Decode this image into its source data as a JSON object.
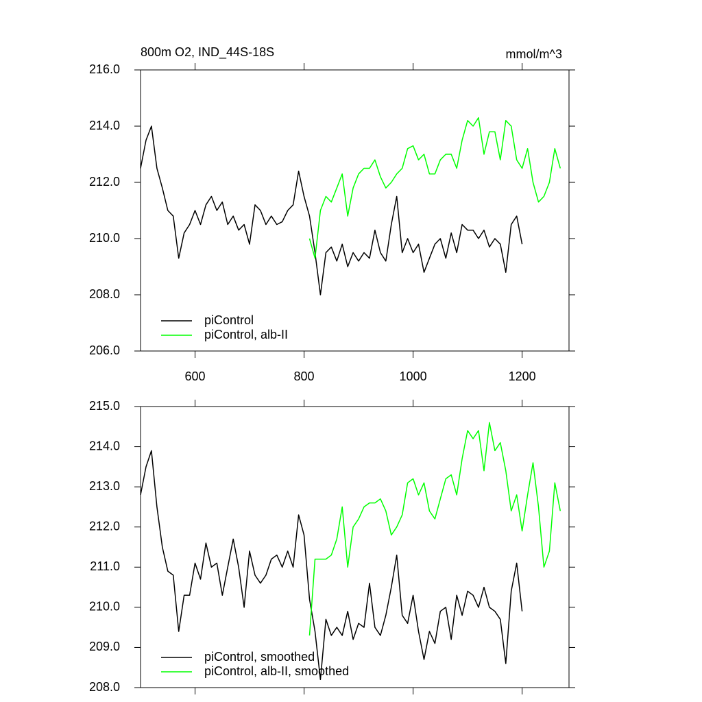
{
  "chart_data": [
    {
      "type": "line",
      "title": "800m O2, IND_44S-18S",
      "units": "mmol/m^3",
      "x": [
        500,
        510,
        520,
        530,
        540,
        550,
        560,
        570,
        580,
        590,
        600,
        610,
        620,
        630,
        640,
        650,
        660,
        670,
        680,
        690,
        700,
        710,
        720,
        730,
        740,
        750,
        760,
        770,
        780,
        790,
        800,
        810,
        820,
        830,
        840,
        850,
        860,
        870,
        880,
        890,
        900,
        910,
        920,
        930,
        940,
        950,
        960,
        970,
        980,
        990,
        1000,
        1010,
        1020,
        1030,
        1040,
        1050,
        1060,
        1070,
        1080,
        1090,
        1100,
        1110,
        1120,
        1130,
        1140,
        1150,
        1160,
        1170,
        1180,
        1190,
        1200,
        1210,
        1220,
        1230,
        1240,
        1250,
        1260,
        1270
      ],
      "xlim": [
        500,
        1286
      ],
      "xticks": [
        600,
        800,
        1000,
        1200
      ],
      "ylim": [
        206,
        216
      ],
      "yticks": [
        {
          "value": 206,
          "label": "206.0"
        },
        {
          "value": 208,
          "label": "208.0"
        },
        {
          "value": 210,
          "label": "210.0"
        },
        {
          "value": 212,
          "label": "212.0"
        },
        {
          "value": 214,
          "label": "214.0"
        },
        {
          "value": 216,
          "label": "216.0"
        }
      ],
      "legend": "lower left",
      "series": [
        {
          "name": "piControl",
          "color": "#000000",
          "values": [
            212.5,
            213.5,
            214.0,
            212.5,
            211.8,
            211.0,
            210.8,
            209.3,
            210.2,
            210.5,
            211.0,
            210.5,
            211.2,
            211.5,
            211.0,
            211.3,
            210.5,
            210.8,
            210.3,
            210.5,
            209.8,
            211.2,
            211.0,
            210.5,
            210.8,
            210.5,
            210.6,
            211.0,
            211.2,
            212.4,
            211.5,
            210.8,
            209.5,
            208.0,
            209.5,
            209.7,
            209.2,
            209.8,
            209.0,
            209.5,
            209.2,
            209.5,
            209.3,
            210.3,
            209.5,
            209.2,
            210.5,
            211.5,
            209.5,
            210.0,
            209.5,
            209.8,
            208.8,
            209.3,
            209.8,
            210.0,
            209.3,
            210.2,
            209.5,
            210.5,
            210.3,
            210.3,
            210.0,
            210.3,
            209.7,
            210.0,
            209.8,
            208.8,
            210.5,
            210.8,
            209.8,
            null,
            null,
            null,
            null,
            null,
            null,
            null
          ]
        },
        {
          "name": "piControl, alb-II",
          "color": "#00ff00",
          "values": [
            null,
            null,
            null,
            null,
            null,
            null,
            null,
            null,
            null,
            null,
            null,
            null,
            null,
            null,
            null,
            null,
            null,
            null,
            null,
            null,
            null,
            null,
            null,
            null,
            null,
            null,
            null,
            null,
            null,
            null,
            null,
            210.0,
            209.3,
            211.0,
            211.5,
            211.3,
            211.8,
            212.3,
            210.8,
            211.8,
            212.3,
            212.5,
            212.5,
            212.8,
            212.2,
            211.8,
            212.0,
            212.3,
            212.5,
            213.2,
            213.3,
            212.8,
            213.0,
            212.3,
            212.3,
            212.8,
            213.0,
            213.0,
            212.5,
            213.5,
            214.2,
            214.0,
            214.3,
            213.0,
            213.8,
            213.8,
            212.8,
            214.2,
            214.0,
            212.8,
            212.5,
            213.2,
            212.0,
            211.3,
            211.5,
            212.0,
            213.2,
            212.5
          ]
        }
      ]
    },
    {
      "type": "line",
      "x": [
        500,
        510,
        520,
        530,
        540,
        550,
        560,
        570,
        580,
        590,
        600,
        610,
        620,
        630,
        640,
        650,
        660,
        670,
        680,
        690,
        700,
        710,
        720,
        730,
        740,
        750,
        760,
        770,
        780,
        790,
        800,
        810,
        820,
        830,
        840,
        850,
        860,
        870,
        880,
        890,
        900,
        910,
        920,
        930,
        940,
        950,
        960,
        970,
        980,
        990,
        1000,
        1010,
        1020,
        1030,
        1040,
        1050,
        1060,
        1070,
        1080,
        1090,
        1100,
        1110,
        1120,
        1130,
        1140,
        1150,
        1160,
        1170,
        1180,
        1190,
        1200,
        1210,
        1220,
        1230,
        1240,
        1250,
        1260,
        1270
      ],
      "xlim": [
        500,
        1286
      ],
      "xticks": [
        600,
        800,
        1000,
        1200
      ],
      "xtick_labels": false,
      "ylim": [
        208,
        215
      ],
      "yticks": [
        {
          "value": 208,
          "label": "208.0"
        },
        {
          "value": 209,
          "label": "209.0"
        },
        {
          "value": 210,
          "label": "210.0"
        },
        {
          "value": 211,
          "label": "211.0"
        },
        {
          "value": 212,
          "label": "212.0"
        },
        {
          "value": 213,
          "label": "213.0"
        },
        {
          "value": 214,
          "label": "214.0"
        },
        {
          "value": 215,
          "label": "215.0"
        }
      ],
      "legend": "lower left",
      "series": [
        {
          "name": "piControl, smoothed",
          "color": "#000000",
          "values": [
            212.8,
            213.5,
            213.9,
            212.5,
            211.5,
            210.9,
            210.8,
            209.4,
            210.3,
            210.3,
            211.1,
            210.7,
            211.6,
            211.0,
            211.1,
            210.3,
            211.0,
            211.7,
            211.0,
            210.0,
            211.4,
            210.8,
            210.6,
            210.8,
            211.2,
            211.3,
            211.0,
            211.4,
            211.0,
            212.3,
            211.8,
            210.2,
            209.4,
            208.2,
            209.7,
            209.3,
            209.5,
            209.3,
            209.9,
            209.2,
            209.6,
            209.5,
            210.6,
            209.5,
            209.3,
            209.8,
            210.5,
            211.3,
            209.8,
            209.6,
            210.3,
            209.4,
            208.7,
            209.4,
            209.1,
            209.9,
            210.0,
            209.2,
            210.3,
            209.8,
            210.4,
            210.3,
            210.0,
            210.5,
            210.0,
            209.9,
            209.7,
            208.6,
            210.4,
            211.1,
            209.9,
            null,
            null,
            null,
            null,
            null,
            null,
            null
          ]
        },
        {
          "name": "piControl, alb-II, smoothed",
          "color": "#00ff00",
          "values": [
            null,
            null,
            null,
            null,
            null,
            null,
            null,
            null,
            null,
            null,
            null,
            null,
            null,
            null,
            null,
            null,
            null,
            null,
            null,
            null,
            null,
            null,
            null,
            null,
            null,
            null,
            null,
            null,
            null,
            null,
            null,
            209.3,
            211.2,
            211.2,
            211.2,
            211.3,
            211.7,
            212.5,
            211.0,
            212.0,
            212.2,
            212.5,
            212.6,
            212.6,
            212.7,
            212.4,
            211.8,
            212.0,
            212.3,
            213.1,
            213.2,
            212.8,
            213.1,
            212.4,
            212.2,
            212.7,
            213.2,
            213.3,
            212.8,
            213.7,
            214.4,
            214.2,
            214.4,
            213.4,
            214.6,
            213.9,
            214.1,
            213.4,
            212.4,
            212.8,
            211.9,
            212.8,
            213.6,
            212.5,
            211.0,
            211.4,
            213.1,
            212.4
          ]
        }
      ]
    }
  ]
}
